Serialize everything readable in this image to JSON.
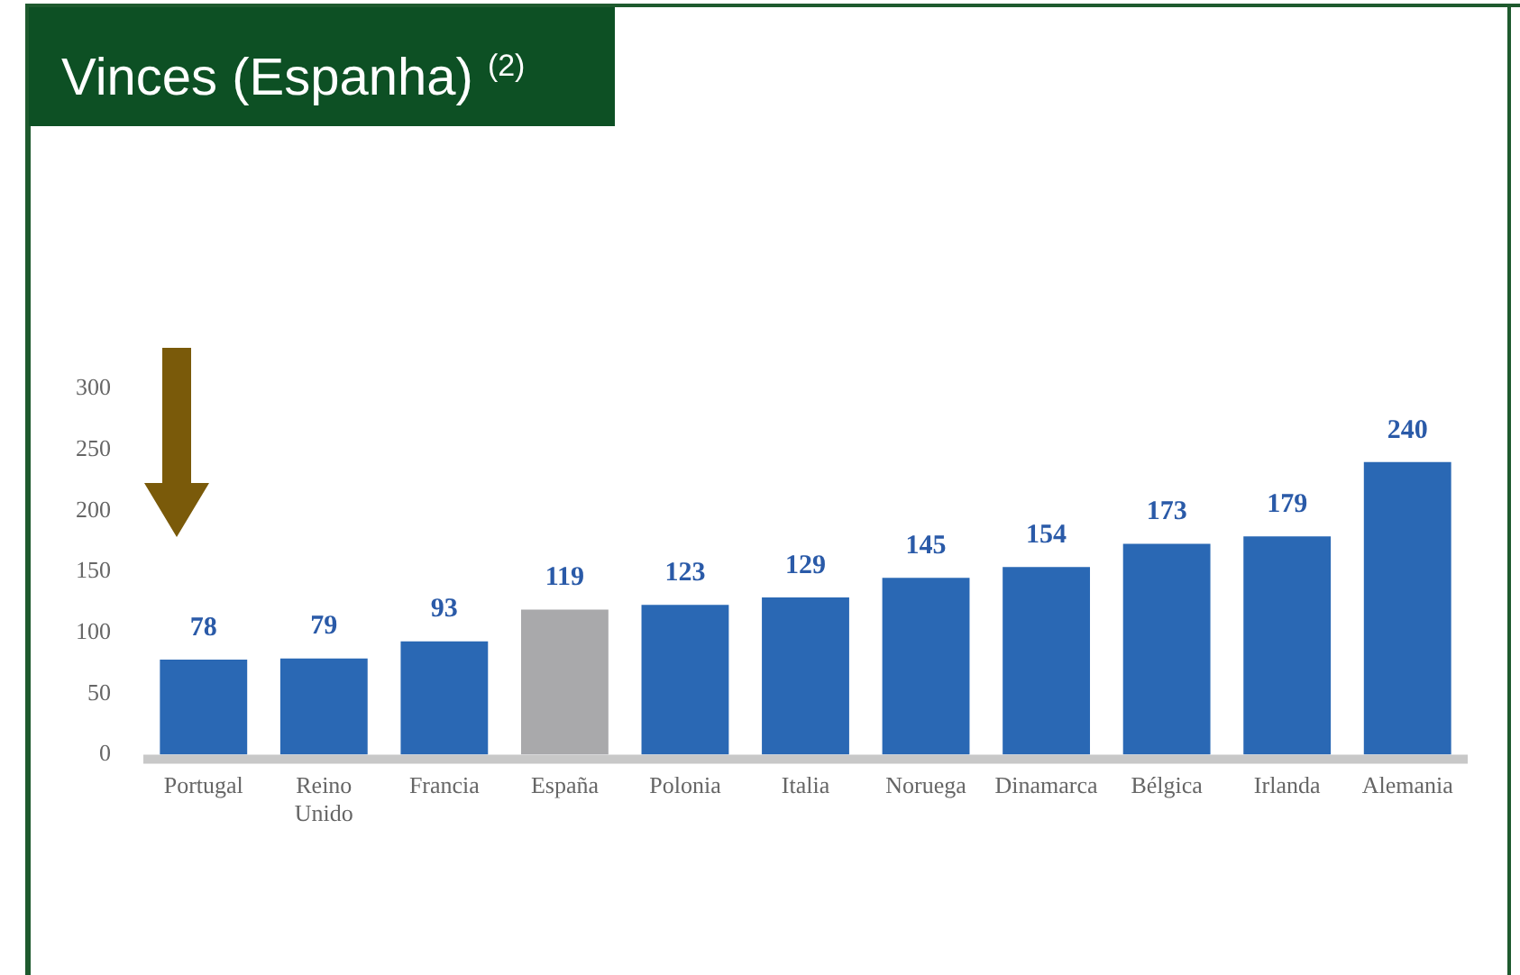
{
  "chart_data": {
    "type": "bar",
    "title": "Vinces (Espanha) $^{(2)}$",
    "categories": [
      "Portugal",
      "Reino Unido",
      "Francia",
      "España",
      "Polonia",
      "Italia",
      "Noruega",
      "Dinamarca",
      "Bélgica",
      "Irlanda",
      "Alemania"
    ],
    "values": [
      78,
      79,
      93,
      119,
      123,
      129,
      145,
      154,
      173,
      179,
      240
    ],
    "colors": [
      "#2a68b4",
      "#2a68b4",
      "#2a68b4",
      "#a9a9ab",
      "#2a68b4",
      "#2a68b4",
      "#2a68b4",
      "#2a68b4",
      "#2a68b4",
      "#2a68b4",
      "#2a68b4"
    ],
    "ylim": [
      0,
      300
    ],
    "yticks": [
      0,
      50,
      100,
      150,
      200,
      250,
      300
    ],
    "grid": false,
    "data_labels": true
  }
}
